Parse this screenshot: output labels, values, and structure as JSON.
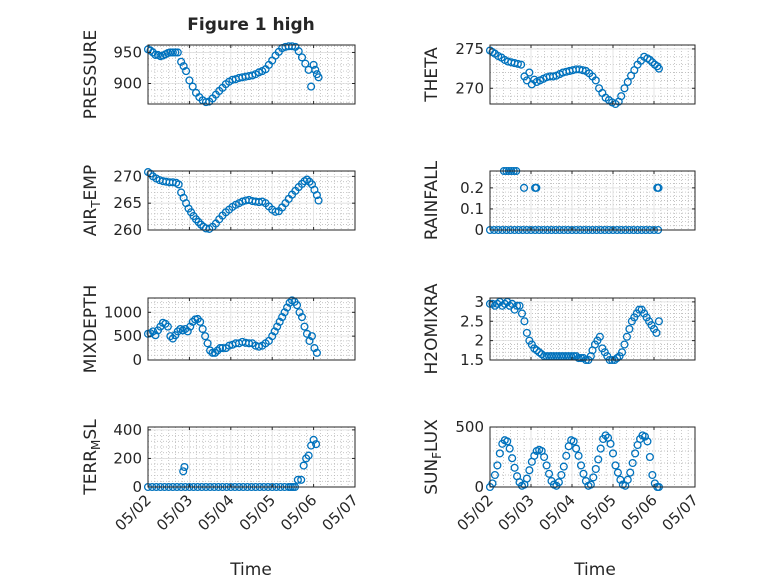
{
  "figure": {
    "title": "Figure 1 high",
    "xlabel": "Time"
  },
  "colors": {
    "marker": "#0072BD",
    "axes": "#262626"
  },
  "chart_data": [
    {
      "type": "scatter",
      "ylabel": "PRESSURE",
      "xticks": [
        "05/02",
        "05/03",
        "05/04",
        "05/05",
        "05/06",
        "05/07"
      ],
      "yticks": [
        900,
        950
      ],
      "ylim": [
        867,
        962
      ],
      "grid": true,
      "x": [
        0.0,
        0.06,
        0.12,
        0.18,
        0.24,
        0.3,
        0.36,
        0.42,
        0.48,
        0.54,
        0.6,
        0.66,
        0.72,
        0.8,
        0.86,
        0.92,
        1.0,
        1.08,
        1.16,
        1.24,
        1.32,
        1.4,
        1.48,
        1.56,
        1.64,
        1.72,
        1.8,
        1.88,
        1.96,
        2.04,
        2.12,
        2.2,
        2.28,
        2.36,
        2.44,
        2.52,
        2.6,
        2.68,
        2.76,
        2.84,
        2.92,
        3.0,
        3.08,
        3.16,
        3.24,
        3.32,
        3.4,
        3.48,
        3.56,
        3.64,
        3.72,
        3.8,
        3.88,
        3.94,
        4.0,
        4.04,
        4.08,
        4.12
      ],
      "y": [
        955,
        953,
        950,
        946,
        946,
        944,
        945,
        947,
        949,
        950,
        950,
        950,
        950,
        935,
        928,
        920,
        905,
        895,
        885,
        878,
        873,
        870,
        871,
        876,
        882,
        888,
        893,
        899,
        903,
        906,
        907,
        909,
        910,
        911,
        912,
        913,
        915,
        918,
        920,
        923,
        930,
        937,
        945,
        951,
        957,
        959,
        960,
        960,
        959,
        952,
        942,
        932,
        922,
        895,
        930,
        922,
        915,
        910
      ]
    },
    {
      "type": "scatter",
      "ylabel": "THETA",
      "xticks": [
        "05/02",
        "05/03",
        "05/04",
        "05/05",
        "05/06",
        "05/07"
      ],
      "yticks": [
        270,
        275
      ],
      "ylim": [
        268,
        275.5
      ],
      "grid": true,
      "x": [
        0.0,
        0.06,
        0.12,
        0.2,
        0.28,
        0.36,
        0.44,
        0.52,
        0.6,
        0.68,
        0.76,
        0.84,
        0.9,
        0.96,
        1.02,
        1.08,
        1.14,
        1.22,
        1.3,
        1.38,
        1.46,
        1.54,
        1.62,
        1.7,
        1.78,
        1.86,
        1.94,
        2.02,
        2.1,
        2.18,
        2.26,
        2.34,
        2.42,
        2.5,
        2.58,
        2.66,
        2.74,
        2.82,
        2.9,
        2.98,
        3.06,
        3.14,
        3.2,
        3.28,
        3.36,
        3.44,
        3.52,
        3.6,
        3.68,
        3.76,
        3.84,
        3.9,
        3.96,
        4.02,
        4.08,
        4.12
      ],
      "y": [
        274.8,
        274.6,
        274.4,
        274.1,
        273.9,
        273.6,
        273.4,
        273.3,
        273.2,
        273.1,
        273.0,
        271.5,
        271.0,
        272.0,
        270.5,
        271.1,
        270.8,
        271.0,
        271.2,
        271.4,
        271.5,
        271.5,
        271.6,
        271.8,
        272.0,
        272.1,
        272.2,
        272.3,
        272.4,
        272.4,
        272.3,
        272.2,
        271.9,
        271.5,
        271.0,
        270.0,
        269.4,
        268.8,
        268.5,
        268.2,
        268.0,
        268.3,
        269.0,
        270.0,
        270.8,
        271.6,
        272.3,
        273.0,
        273.5,
        274.0,
        273.8,
        273.6,
        273.3,
        273.0,
        272.8,
        272.5
      ]
    },
    {
      "type": "scatter",
      "ylabel": "AIR_TEMP",
      "xticks": [
        "05/02",
        "05/03",
        "05/04",
        "05/05",
        "05/06",
        "05/07"
      ],
      "yticks": [
        260,
        265,
        270
      ],
      "ylim": [
        260,
        271
      ],
      "grid": true,
      "x": [
        0.0,
        0.06,
        0.12,
        0.2,
        0.28,
        0.36,
        0.44,
        0.52,
        0.6,
        0.68,
        0.74,
        0.8,
        0.86,
        0.92,
        0.98,
        1.04,
        1.1,
        1.16,
        1.22,
        1.28,
        1.34,
        1.4,
        1.48,
        1.56,
        1.64,
        1.72,
        1.8,
        1.88,
        1.96,
        2.04,
        2.12,
        2.2,
        2.28,
        2.36,
        2.44,
        2.52,
        2.6,
        2.68,
        2.76,
        2.84,
        2.92,
        3.0,
        3.08,
        3.16,
        3.24,
        3.32,
        3.4,
        3.48,
        3.56,
        3.64,
        3.72,
        3.78,
        3.84,
        3.9,
        3.96,
        4.02,
        4.08,
        4.12
      ],
      "y": [
        270.8,
        270.5,
        270.0,
        269.6,
        269.3,
        269.1,
        269.0,
        268.9,
        268.9,
        268.8,
        268.5,
        267.0,
        266.0,
        265.0,
        264.0,
        263.3,
        262.6,
        262.0,
        261.5,
        261.0,
        260.6,
        260.3,
        260.2,
        260.6,
        261.2,
        262.0,
        262.7,
        263.3,
        263.8,
        264.3,
        264.7,
        265.0,
        265.3,
        265.5,
        265.6,
        265.4,
        265.3,
        265.2,
        265.3,
        265.0,
        264.4,
        263.8,
        263.4,
        263.5,
        264.2,
        265.0,
        265.8,
        266.6,
        267.3,
        268.0,
        268.6,
        269.1,
        269.4,
        269.0,
        268.5,
        267.5,
        266.5,
        265.5
      ]
    },
    {
      "type": "scatter",
      "ylabel": "RAINFALL",
      "xticks": [
        "05/02",
        "05/03",
        "05/04",
        "05/05",
        "05/06",
        "05/07"
      ],
      "yticks": [
        0,
        0.1,
        0.2
      ],
      "ylim": [
        0,
        0.28
      ],
      "grid": true,
      "x": [
        0.0,
        0.1,
        0.2,
        0.3,
        0.4,
        0.5,
        0.6,
        0.7,
        0.8,
        0.9,
        1.0,
        1.1,
        1.2,
        1.3,
        1.4,
        1.5,
        1.6,
        1.7,
        1.8,
        1.9,
        2.0,
        2.1,
        2.2,
        2.3,
        2.4,
        2.5,
        2.6,
        2.7,
        2.8,
        2.9,
        3.0,
        3.1,
        3.2,
        3.3,
        3.4,
        3.5,
        3.6,
        3.7,
        3.8,
        3.9,
        4.0,
        4.1,
        0.34,
        0.4,
        0.46,
        0.52,
        0.58,
        0.64,
        0.83,
        1.1,
        1.13,
        4.08,
        4.11
      ],
      "y": [
        0,
        0,
        0,
        0,
        0,
        0,
        0,
        0,
        0,
        0,
        0,
        0,
        0,
        0,
        0,
        0,
        0,
        0,
        0,
        0,
        0,
        0,
        0,
        0,
        0,
        0,
        0,
        0,
        0,
        0,
        0,
        0,
        0,
        0,
        0,
        0,
        0,
        0,
        0,
        0,
        0,
        0,
        0.3,
        0.3,
        0.3,
        0.3,
        0.3,
        0.3,
        0.2,
        0.2,
        0.2,
        0.2,
        0.2
      ]
    },
    {
      "type": "scatter",
      "ylabel": "MIXDEPTH",
      "xticks": [
        "05/02",
        "05/03",
        "05/04",
        "05/05",
        "05/06",
        "05/07"
      ],
      "yticks": [
        0,
        500,
        1000
      ],
      "ylim": [
        0,
        1300
      ],
      "grid": true,
      "x": [
        0.0,
        0.06,
        0.12,
        0.18,
        0.24,
        0.3,
        0.36,
        0.42,
        0.48,
        0.54,
        0.6,
        0.66,
        0.72,
        0.78,
        0.84,
        0.9,
        0.96,
        1.02,
        1.08,
        1.14,
        1.2,
        1.26,
        1.32,
        1.38,
        1.44,
        1.5,
        1.56,
        1.62,
        1.68,
        1.74,
        1.8,
        1.88,
        1.96,
        2.04,
        2.12,
        2.2,
        2.28,
        2.36,
        2.44,
        2.52,
        2.6,
        2.68,
        2.76,
        2.84,
        2.92,
        3.0,
        3.06,
        3.12,
        3.18,
        3.24,
        3.3,
        3.36,
        3.42,
        3.48,
        3.54,
        3.6,
        3.66,
        3.72,
        3.78,
        3.84,
        3.9,
        3.96,
        4.02,
        4.08
      ],
      "y": [
        550,
        560,
        600,
        520,
        620,
        700,
        780,
        760,
        700,
        500,
        450,
        520,
        600,
        650,
        620,
        650,
        600,
        700,
        800,
        850,
        860,
        800,
        650,
        500,
        350,
        200,
        150,
        150,
        200,
        250,
        250,
        250,
        300,
        320,
        350,
        350,
        380,
        360,
        350,
        350,
        300,
        280,
        300,
        350,
        400,
        500,
        600,
        700,
        800,
        900,
        1000,
        1100,
        1200,
        1250,
        1220,
        1150,
        1000,
        900,
        700,
        550,
        400,
        500,
        250,
        150
      ]
    },
    {
      "type": "scatter",
      "ylabel": "H2OMIXRA",
      "xticks": [
        "05/02",
        "05/03",
        "05/04",
        "05/05",
        "05/06",
        "05/07"
      ],
      "yticks": [
        1.5,
        2,
        2.5,
        3
      ],
      "ylim": [
        1.5,
        3.1
      ],
      "grid": true,
      "x": [
        0.0,
        0.06,
        0.12,
        0.18,
        0.24,
        0.3,
        0.36,
        0.42,
        0.48,
        0.54,
        0.6,
        0.66,
        0.72,
        0.78,
        0.84,
        0.9,
        0.96,
        1.02,
        1.08,
        1.14,
        1.2,
        1.26,
        1.32,
        1.38,
        1.44,
        1.5,
        1.56,
        1.62,
        1.68,
        1.74,
        1.8,
        1.86,
        1.92,
        1.98,
        2.04,
        2.1,
        2.16,
        2.22,
        2.28,
        2.34,
        2.4,
        2.46,
        2.5,
        2.56,
        2.62,
        2.68,
        2.74,
        2.8,
        2.86,
        2.92,
        2.98,
        3.04,
        3.1,
        3.16,
        3.22,
        3.28,
        3.34,
        3.4,
        3.46,
        3.52,
        3.58,
        3.64,
        3.7,
        3.76,
        3.82,
        3.88,
        3.94,
        4.0,
        4.06,
        4.12
      ],
      "y": [
        2.95,
        2.95,
        2.9,
        2.95,
        3.0,
        2.9,
        2.95,
        3.0,
        2.9,
        2.95,
        2.8,
        2.9,
        2.9,
        2.7,
        2.5,
        2.2,
        2.0,
        1.9,
        1.8,
        1.75,
        1.7,
        1.65,
        1.6,
        1.6,
        1.6,
        1.6,
        1.6,
        1.6,
        1.6,
        1.6,
        1.6,
        1.6,
        1.6,
        1.6,
        1.6,
        1.6,
        1.55,
        1.55,
        1.55,
        1.5,
        1.5,
        1.6,
        1.75,
        1.9,
        2.0,
        2.1,
        1.8,
        1.7,
        1.6,
        1.5,
        1.5,
        1.5,
        1.55,
        1.6,
        1.7,
        1.9,
        2.1,
        2.3,
        2.5,
        2.6,
        2.7,
        2.8,
        2.8,
        2.7,
        2.6,
        2.5,
        2.4,
        2.3,
        2.2,
        2.5
      ]
    },
    {
      "type": "scatter",
      "ylabel": "TERR_MSL",
      "xticks": [
        "05/02",
        "05/03",
        "05/04",
        "05/05",
        "05/06",
        "05/07"
      ],
      "yticks": [
        0,
        200,
        400
      ],
      "ylim": [
        0,
        420
      ],
      "grid": true,
      "x": [
        0.0,
        0.1,
        0.2,
        0.3,
        0.4,
        0.5,
        0.6,
        0.7,
        0.8,
        0.9,
        1.0,
        1.1,
        1.2,
        1.3,
        1.4,
        1.5,
        1.6,
        1.7,
        1.8,
        1.9,
        2.0,
        2.1,
        2.2,
        2.3,
        2.4,
        2.5,
        2.6,
        2.7,
        2.8,
        2.9,
        3.0,
        3.1,
        3.2,
        3.3,
        3.4,
        3.5,
        0.85,
        0.88,
        3.45,
        3.55,
        3.62,
        3.7,
        3.76,
        3.82,
        3.88,
        3.94,
        4.0,
        4.06
      ],
      "y": [
        0,
        0,
        0,
        0,
        0,
        0,
        0,
        0,
        0,
        0,
        0,
        0,
        0,
        0,
        0,
        0,
        0,
        0,
        0,
        0,
        0,
        0,
        0,
        0,
        0,
        0,
        0,
        0,
        0,
        0,
        0,
        0,
        0,
        0,
        0,
        0,
        110,
        140,
        0,
        0,
        50,
        50,
        150,
        200,
        220,
        290,
        330,
        300
      ]
    },
    {
      "type": "scatter",
      "ylabel": "SUN_FLUX",
      "xticks": [
        "05/02",
        "05/03",
        "05/04",
        "05/05",
        "05/06",
        "05/07"
      ],
      "yticks": [
        0,
        500
      ],
      "ylim": [
        0,
        500
      ],
      "grid": true,
      "x": [
        0.0,
        0.06,
        0.12,
        0.18,
        0.24,
        0.3,
        0.36,
        0.42,
        0.48,
        0.54,
        0.6,
        0.66,
        0.72,
        0.78,
        0.84,
        0.9,
        0.96,
        1.02,
        1.08,
        1.14,
        1.2,
        1.26,
        1.32,
        1.38,
        1.44,
        1.5,
        1.56,
        1.62,
        1.68,
        1.74,
        1.8,
        1.86,
        1.92,
        1.98,
        2.04,
        2.1,
        2.16,
        2.22,
        2.28,
        2.34,
        2.4,
        2.46,
        2.52,
        2.58,
        2.64,
        2.7,
        2.76,
        2.82,
        2.88,
        2.94,
        3.0,
        3.06,
        3.12,
        3.18,
        3.24,
        3.3,
        3.36,
        3.42,
        3.48,
        3.54,
        3.6,
        3.66,
        3.72,
        3.78,
        3.84,
        3.9,
        3.96,
        4.02,
        4.08,
        4.12
      ],
      "y": [
        0,
        30,
        100,
        180,
        280,
        360,
        390,
        380,
        320,
        240,
        160,
        90,
        40,
        10,
        20,
        70,
        140,
        210,
        260,
        300,
        310,
        300,
        250,
        180,
        110,
        50,
        20,
        10,
        40,
        100,
        170,
        260,
        340,
        390,
        380,
        320,
        260,
        180,
        110,
        50,
        10,
        20,
        80,
        150,
        230,
        320,
        400,
        430,
        410,
        360,
        280,
        180,
        120,
        60,
        20,
        10,
        60,
        120,
        200,
        280,
        350,
        400,
        430,
        420,
        380,
        250,
        100,
        30,
        0,
        0
      ]
    }
  ]
}
